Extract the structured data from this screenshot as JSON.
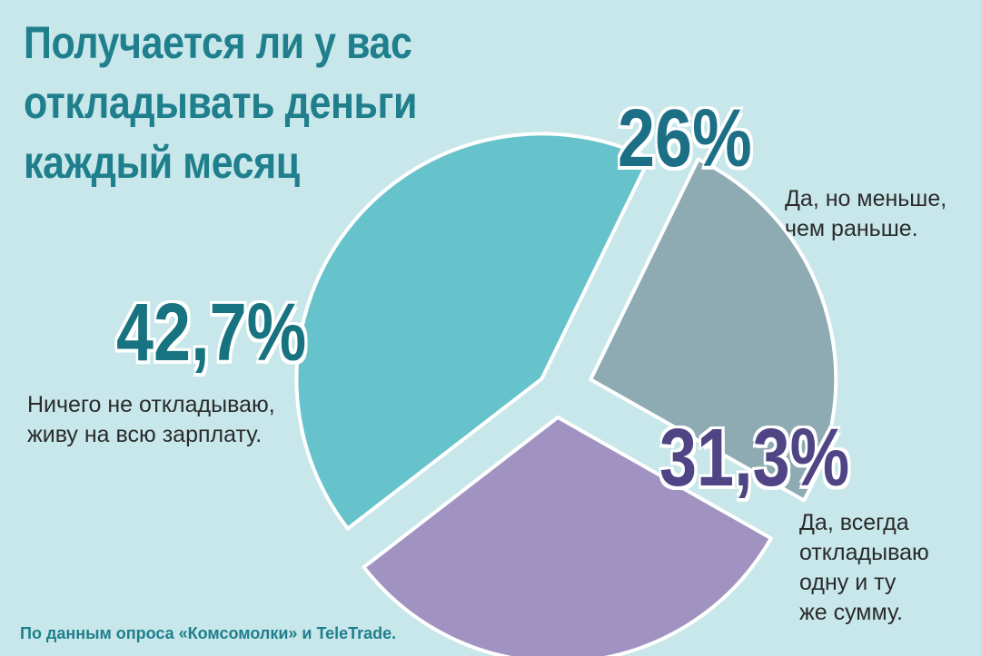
{
  "title_lines": [
    "Получается ли у вас",
    "откладывать деньги",
    "каждый месяц"
  ],
  "source": "По данным опроса «Комсомолки» и TeleTrade.",
  "chart_data": {
    "type": "pie",
    "slices": [
      {
        "label": "26%",
        "value": 26,
        "caption_lines": [
          "Да, но меньше,",
          "чем раньше."
        ],
        "color": "#8eabb4",
        "label_color": "#1d6f86"
      },
      {
        "label": "31,3%",
        "value": 31.3,
        "caption_lines": [
          "Да, всегда",
          "откладываю",
          "одну и ту",
          "же сумму."
        ],
        "color": "#a093c1",
        "label_color": "#4f4584"
      },
      {
        "label": "42,7%",
        "value": 42.7,
        "caption_lines": [
          "Ничего не откладываю,",
          "живу на всю зарплату."
        ],
        "color": "#66c2cb",
        "label_color": "#17737f"
      }
    ]
  }
}
